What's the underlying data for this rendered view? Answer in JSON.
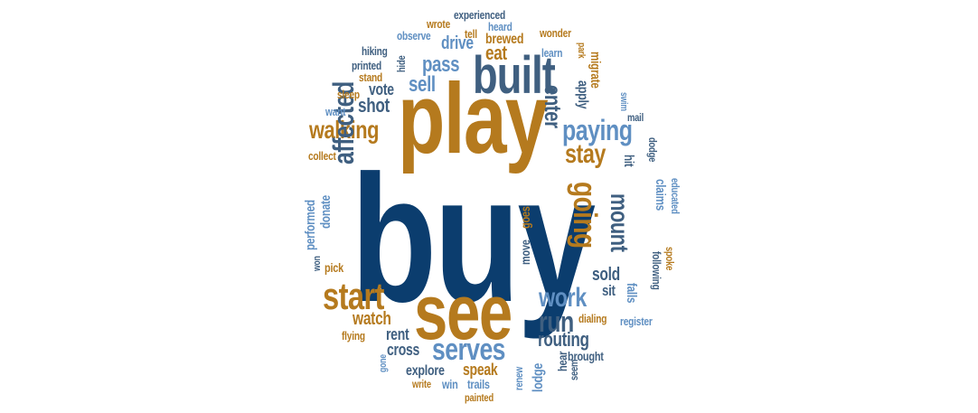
{
  "colors": {
    "navy": "#0b3d6e",
    "gold": "#b57a1e",
    "steel": "#5f8fc2",
    "slate": "#3f5f80",
    "background": "#ffffff"
  },
  "words": [
    {
      "text": "buy",
      "color": "navy"
    },
    {
      "text": "play",
      "color": "gold"
    },
    {
      "text": "see",
      "color": "gold"
    },
    {
      "text": "built",
      "color": "slate"
    },
    {
      "text": "start",
      "color": "gold"
    },
    {
      "text": "serves",
      "color": "steel"
    },
    {
      "text": "run",
      "color": "slate"
    },
    {
      "text": "work",
      "color": "steel"
    },
    {
      "text": "paying",
      "color": "steel"
    },
    {
      "text": "going",
      "color": "gold"
    },
    {
      "text": "walking",
      "color": "gold"
    },
    {
      "text": "affected",
      "color": "slate"
    },
    {
      "text": "stay",
      "color": "gold"
    },
    {
      "text": "mount",
      "color": "slate"
    },
    {
      "text": "enter",
      "color": "slate"
    },
    {
      "text": "sell",
      "color": "steel"
    },
    {
      "text": "pass",
      "color": "steel"
    },
    {
      "text": "routing",
      "color": "slate"
    },
    {
      "text": "shot",
      "color": "slate"
    },
    {
      "text": "eat",
      "color": "gold"
    },
    {
      "text": "watch",
      "color": "gold"
    },
    {
      "text": "drive",
      "color": "steel"
    },
    {
      "text": "sold",
      "color": "slate"
    },
    {
      "text": "vote",
      "color": "slate"
    },
    {
      "text": "rent",
      "color": "slate"
    },
    {
      "text": "cross",
      "color": "slate"
    },
    {
      "text": "speak",
      "color": "gold"
    },
    {
      "text": "explore",
      "color": "slate"
    },
    {
      "text": "lodge",
      "color": "steel"
    },
    {
      "text": "brewed",
      "color": "gold"
    },
    {
      "text": "apply",
      "color": "slate"
    },
    {
      "text": "migrate",
      "color": "gold"
    },
    {
      "text": "hit",
      "color": "slate"
    },
    {
      "text": "claims",
      "color": "steel"
    },
    {
      "text": "sit",
      "color": "slate"
    },
    {
      "text": "falls",
      "color": "steel"
    },
    {
      "text": "donate",
      "color": "steel"
    },
    {
      "text": "performed",
      "color": "steel"
    },
    {
      "text": "trails",
      "color": "steel"
    },
    {
      "text": "win",
      "color": "steel"
    },
    {
      "text": "hear",
      "color": "slate"
    },
    {
      "text": "brought",
      "color": "slate"
    },
    {
      "text": "dialing",
      "color": "gold"
    },
    {
      "text": "register",
      "color": "steel"
    },
    {
      "text": "following",
      "color": "slate"
    },
    {
      "text": "educated",
      "color": "steel"
    },
    {
      "text": "spoke",
      "color": "gold"
    },
    {
      "text": "dodge",
      "color": "slate"
    },
    {
      "text": "mail",
      "color": "slate"
    },
    {
      "text": "swim",
      "color": "steel"
    },
    {
      "text": "park",
      "color": "gold"
    },
    {
      "text": "learn",
      "color": "steel"
    },
    {
      "text": "wonder",
      "color": "gold"
    },
    {
      "text": "heard",
      "color": "steel"
    },
    {
      "text": "tell",
      "color": "gold"
    },
    {
      "text": "experienced",
      "color": "slate"
    },
    {
      "text": "wrote",
      "color": "gold"
    },
    {
      "text": "observe",
      "color": "steel"
    },
    {
      "text": "hiking",
      "color": "slate"
    },
    {
      "text": "hide",
      "color": "slate"
    },
    {
      "text": "printed",
      "color": "slate"
    },
    {
      "text": "stand",
      "color": "gold"
    },
    {
      "text": "sleep",
      "color": "gold"
    },
    {
      "text": "want",
      "color": "steel"
    },
    {
      "text": "collect",
      "color": "gold"
    },
    {
      "text": "pick",
      "color": "gold"
    },
    {
      "text": "won",
      "color": "slate"
    },
    {
      "text": "flying",
      "color": "gold"
    },
    {
      "text": "gone",
      "color": "steel"
    },
    {
      "text": "write",
      "color": "gold"
    },
    {
      "text": "painted",
      "color": "gold"
    },
    {
      "text": "renew",
      "color": "steel"
    },
    {
      "text": "seem",
      "color": "slate"
    },
    {
      "text": "move",
      "color": "slate"
    },
    {
      "text": "goes",
      "color": "gold"
    }
  ]
}
